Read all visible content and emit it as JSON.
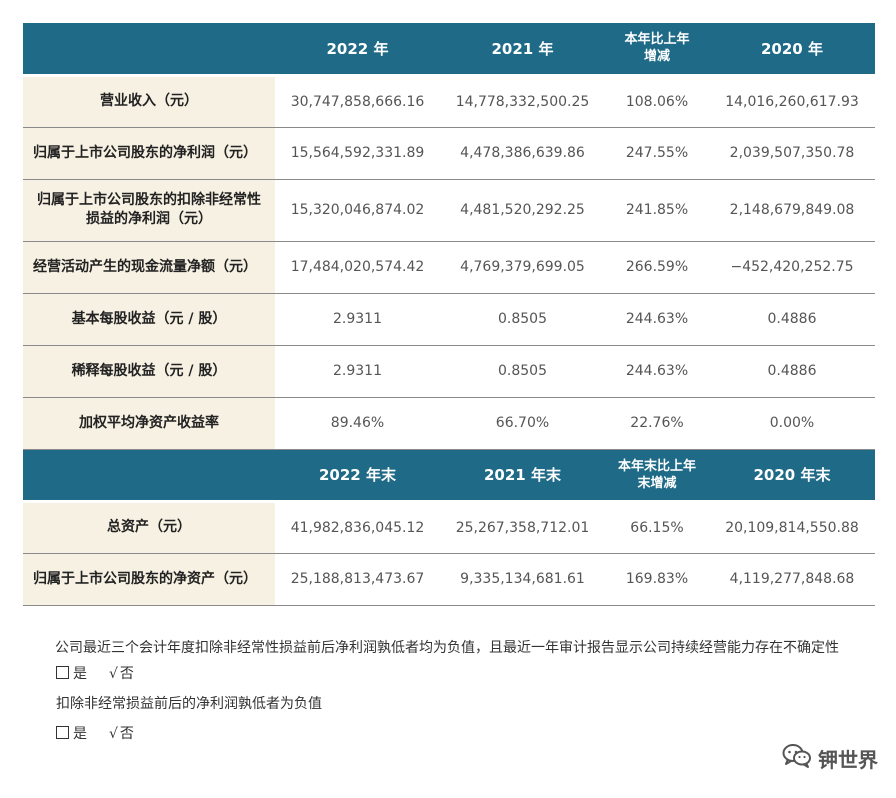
{
  "table1": {
    "header": [
      "",
      "2022 年",
      "2021 年",
      "本年比上年增减",
      "2020 年"
    ],
    "header_col3_lines": [
      "本年比上年",
      "增减"
    ],
    "rows": [
      {
        "label_lines": [
          "营业收入（元）"
        ],
        "align": "center",
        "values": [
          "30,747,858,666.16",
          "14,778,332,500.25",
          "108.06%",
          "14,016,260,617.93"
        ]
      },
      {
        "label_lines": [
          "归属于上市公司股东的净利润（元）"
        ],
        "align": "left",
        "values": [
          "15,564,592,331.89",
          "4,478,386,639.86",
          "247.55%",
          "2,039,507,350.78"
        ]
      },
      {
        "label_lines": [
          "归属于上市公司股东的扣除非经常性",
          "损益的净利润（元）"
        ],
        "align": "center",
        "values": [
          "15,320,046,874.02",
          "4,481,520,292.25",
          "241.85%",
          "2,148,679,849.08"
        ]
      },
      {
        "label_lines": [
          "经营活动产生的现金流量净额（元）"
        ],
        "align": "left",
        "values": [
          "17,484,020,574.42",
          "4,769,379,699.05",
          "266.59%",
          "−452,420,252.75"
        ]
      },
      {
        "label_lines": [
          "基本每股收益（元 / 股）"
        ],
        "align": "center",
        "values": [
          "2.9311",
          "0.8505",
          "244.63%",
          "0.4886"
        ]
      },
      {
        "label_lines": [
          "稀释每股收益（元 / 股）"
        ],
        "align": "center",
        "values": [
          "2.9311",
          "0.8505",
          "244.63%",
          "0.4886"
        ]
      },
      {
        "label_lines": [
          "加权平均净资产收益率"
        ],
        "align": "center",
        "values": [
          "89.46%",
          "66.70%",
          "22.76%",
          "0.00%"
        ]
      }
    ]
  },
  "table2": {
    "header": [
      "",
      "2022 年末",
      "2021 年末",
      "本年末比上年末增减",
      "2020 年末"
    ],
    "header_col3_lines": [
      "本年末比上年",
      "末增减"
    ],
    "rows": [
      {
        "label_lines": [
          "总资产（元）"
        ],
        "align": "center",
        "values": [
          "41,982,836,045.12",
          "25,267,358,712.01",
          "66.15%",
          "20,109,814,550.88"
        ]
      },
      {
        "label_lines": [
          "归属于上市公司股东的净资产（元）"
        ],
        "align": "left",
        "values": [
          "25,188,813,473.67",
          "9,335,134,681.61",
          "169.83%",
          "4,119,277,848.68"
        ]
      }
    ]
  },
  "notes": {
    "question1": "公司最近三个会计年度扣除非经常性损益前后净利润孰低者均为负值，且最近一年审计报告显示公司持续经营能力存在不确定性",
    "yes_label": "是",
    "no_mark": "√",
    "no_label": "否",
    "question2": "扣除非经常损益前后的净利润孰低者为负值"
  },
  "watermark": {
    "text": "钾世界",
    "icon": "wechat-icon"
  }
}
